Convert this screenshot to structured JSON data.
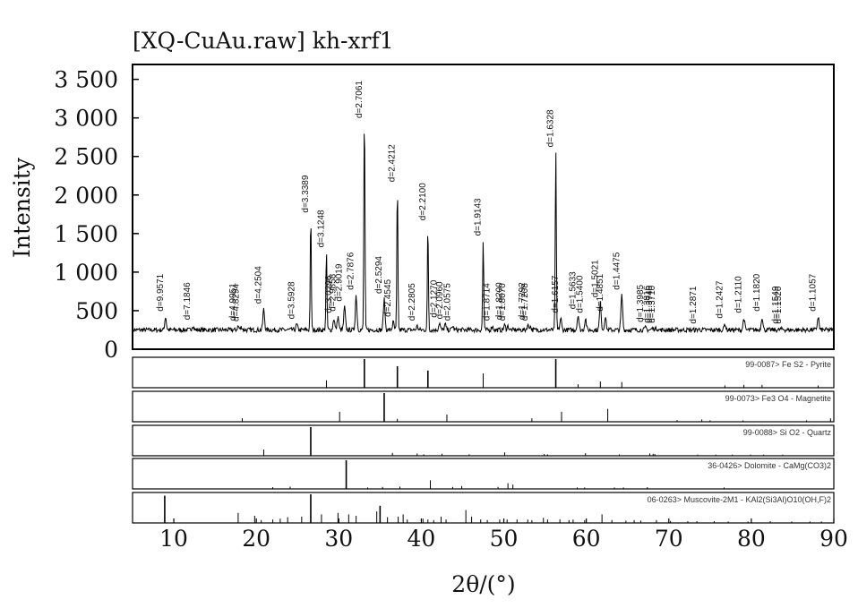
{
  "chart_data": {
    "type": "line",
    "title": "[XQ-CuAu.raw] kh-xrf1",
    "ylabel": "Intensity",
    "xlabel": "2θ/(°)",
    "xlim": [
      5,
      90
    ],
    "ylim": [
      0,
      3600
    ],
    "x_ticks": [
      10,
      20,
      30,
      40,
      50,
      60,
      70,
      80,
      90
    ],
    "y_ticks": [
      0,
      500,
      1000,
      1500,
      2000,
      2500,
      3000,
      3500
    ],
    "y_tick_labels": [
      "0",
      "500",
      "1 000",
      "1 500",
      "2 000",
      "2 500",
      "3 000",
      "3 500"
    ],
    "baseline": 250,
    "peaks": [
      {
        "x": 9.0,
        "y": 420,
        "label": "d=9.9571"
      },
      {
        "x": 12.3,
        "y": 310,
        "label": "d=7.1846"
      },
      {
        "x": 17.8,
        "y": 300,
        "label": "d=4.9951"
      },
      {
        "x": 18.2,
        "y": 290,
        "label": "d=4.8294"
      },
      {
        "x": 20.9,
        "y": 520,
        "label": "d=4.2504"
      },
      {
        "x": 24.9,
        "y": 320,
        "label": "d=3.5928"
      },
      {
        "x": 26.6,
        "y": 1700,
        "label": "d=3.3389"
      },
      {
        "x": 28.5,
        "y": 1250,
        "label": "d=3.1248"
      },
      {
        "x": 29.4,
        "y": 400,
        "label": "d=3.0296"
      },
      {
        "x": 29.9,
        "y": 420,
        "label": "d=2.9858"
      },
      {
        "x": 30.7,
        "y": 550,
        "label": "d=2.9019"
      },
      {
        "x": 32.1,
        "y": 700,
        "label": "d=2.7876"
      },
      {
        "x": 33.1,
        "y": 3100,
        "label": "d=2.7061"
      },
      {
        "x": 35.5,
        "y": 650,
        "label": "d=2.5294"
      },
      {
        "x": 36.6,
        "y": 350,
        "label": "d=2.4545"
      },
      {
        "x": 37.1,
        "y": 2100,
        "label": "d=2.4212"
      },
      {
        "x": 39.5,
        "y": 300,
        "label": "d=2.2805"
      },
      {
        "x": 40.8,
        "y": 1600,
        "label": "d=2.2100"
      },
      {
        "x": 42.2,
        "y": 340,
        "label": "d=2.1270"
      },
      {
        "x": 42.9,
        "y": 320,
        "label": "d=2.0960"
      },
      {
        "x": 43.8,
        "y": 300,
        "label": "d=2.0575"
      },
      {
        "x": 47.5,
        "y": 1400,
        "label": "d=1.9143"
      },
      {
        "x": 48.6,
        "y": 300,
        "label": "d=1.8714"
      },
      {
        "x": 50.1,
        "y": 310,
        "label": "d=1.8200"
      },
      {
        "x": 50.5,
        "y": 300,
        "label": "d=1.8070"
      },
      {
        "x": 52.9,
        "y": 310,
        "label": "d=1.7292"
      },
      {
        "x": 53.2,
        "y": 300,
        "label": "d=1.7208"
      },
      {
        "x": 56.3,
        "y": 2550,
        "label": "d=1.6328"
      },
      {
        "x": 56.9,
        "y": 400,
        "label": "d=1.6157"
      },
      {
        "x": 59.0,
        "y": 450,
        "label": "d=1.5633"
      },
      {
        "x": 59.9,
        "y": 400,
        "label": "d=1.5400"
      },
      {
        "x": 61.7,
        "y": 600,
        "label": "d=1.5021"
      },
      {
        "x": 62.3,
        "y": 420,
        "label": "d=1.4851"
      },
      {
        "x": 64.3,
        "y": 700,
        "label": "d=1.4475"
      },
      {
        "x": 67.2,
        "y": 280,
        "label": "d=1.3985"
      },
      {
        "x": 68.0,
        "y": 270,
        "label": "d=1.3816"
      },
      {
        "x": 68.3,
        "y": 270,
        "label": "d=1.3740"
      },
      {
        "x": 68.6,
        "y": 270,
        "label": "d=1.3710"
      },
      {
        "x": 73.6,
        "y": 260,
        "label": "d=1.2871"
      },
      {
        "x": 76.8,
        "y": 330,
        "label": "d=1.2427"
      },
      {
        "x": 79.1,
        "y": 400,
        "label": "d=1.2110"
      },
      {
        "x": 81.3,
        "y": 420,
        "label": "d=1.1820"
      },
      {
        "x": 83.6,
        "y": 260,
        "label": "d=1.1549"
      },
      {
        "x": 83.9,
        "y": 260,
        "label": "d=1.1520"
      },
      {
        "x": 88.1,
        "y": 420,
        "label": "d=1.1057"
      }
    ],
    "reference_panels": [
      {
        "label": "99-0087> Fe S2 - Pyrite",
        "lines": [
          [
            28.5,
            0.26
          ],
          [
            33.1,
            1.0
          ],
          [
            37.1,
            0.75
          ],
          [
            40.8,
            0.6
          ],
          [
            47.5,
            0.5
          ],
          [
            56.3,
            1.0
          ],
          [
            59.0,
            0.12
          ],
          [
            61.7,
            0.22
          ],
          [
            64.3,
            0.2
          ],
          [
            76.8,
            0.08
          ],
          [
            79.1,
            0.1
          ],
          [
            81.3,
            0.1
          ],
          [
            88.1,
            0.08
          ]
        ]
      },
      {
        "label": "99-0073> Fe3 O4 - Magnetite",
        "lines": [
          [
            18.3,
            0.12
          ],
          [
            30.1,
            0.35
          ],
          [
            35.5,
            1.0
          ],
          [
            37.1,
            0.1
          ],
          [
            43.1,
            0.25
          ],
          [
            53.4,
            0.12
          ],
          [
            57.0,
            0.35
          ],
          [
            62.6,
            0.45
          ],
          [
            71.0,
            0.06
          ],
          [
            74.0,
            0.08
          ],
          [
            75.0,
            0.05
          ],
          [
            79.0,
            0.05
          ],
          [
            86.7,
            0.05
          ],
          [
            89.6,
            0.12
          ]
        ]
      },
      {
        "label": "99-0088> Si O2 - Quartz",
        "lines": [
          [
            20.9,
            0.22
          ],
          [
            26.6,
            1.0
          ],
          [
            36.5,
            0.1
          ],
          [
            39.5,
            0.08
          ],
          [
            40.3,
            0.05
          ],
          [
            42.5,
            0.07
          ],
          [
            45.8,
            0.05
          ],
          [
            50.1,
            0.12
          ],
          [
            54.9,
            0.06
          ],
          [
            55.3,
            0.05
          ],
          [
            59.9,
            0.09
          ],
          [
            64.0,
            0.05
          ],
          [
            67.7,
            0.08
          ],
          [
            68.1,
            0.07
          ],
          [
            68.3,
            0.06
          ],
          [
            73.5,
            0.04
          ],
          [
            75.7,
            0.04
          ],
          [
            77.7,
            0.04
          ],
          [
            79.9,
            0.04
          ],
          [
            81.5,
            0.04
          ],
          [
            83.8,
            0.04
          ]
        ]
      },
      {
        "label": "36-0426> Dolomite - CaMg(CO3)2",
        "lines": [
          [
            22.0,
            0.06
          ],
          [
            24.1,
            0.08
          ],
          [
            30.9,
            1.0
          ],
          [
            33.5,
            0.05
          ],
          [
            35.3,
            0.07
          ],
          [
            37.4,
            0.08
          ],
          [
            41.1,
            0.3
          ],
          [
            43.8,
            0.07
          ],
          [
            44.9,
            0.1
          ],
          [
            49.3,
            0.07
          ],
          [
            50.5,
            0.2
          ],
          [
            51.1,
            0.15
          ],
          [
            58.9,
            0.05
          ],
          [
            59.8,
            0.05
          ],
          [
            63.4,
            0.05
          ],
          [
            64.5,
            0.05
          ],
          [
            67.4,
            0.06
          ],
          [
            76.7,
            0.05
          ]
        ]
      },
      {
        "label": "06-0263> Muscovite-2M1 - KAl2(Si3Al)O10(OH,F)2",
        "lines": [
          [
            8.9,
            0.95
          ],
          [
            17.8,
            0.35
          ],
          [
            19.8,
            0.25
          ],
          [
            20.6,
            0.1
          ],
          [
            22.0,
            0.12
          ],
          [
            22.9,
            0.15
          ],
          [
            23.8,
            0.2
          ],
          [
            25.5,
            0.22
          ],
          [
            26.6,
            1.0
          ],
          [
            27.9,
            0.3
          ],
          [
            29.9,
            0.35
          ],
          [
            31.2,
            0.3
          ],
          [
            32.1,
            0.25
          ],
          [
            34.6,
            0.4
          ],
          [
            35.0,
            0.6
          ],
          [
            35.9,
            0.2
          ],
          [
            37.2,
            0.22
          ],
          [
            37.8,
            0.3
          ],
          [
            38.3,
            0.12
          ],
          [
            40.2,
            0.15
          ],
          [
            40.8,
            0.12
          ],
          [
            41.5,
            0.1
          ],
          [
            42.4,
            0.22
          ],
          [
            43.0,
            0.12
          ],
          [
            45.4,
            0.45
          ],
          [
            46.1,
            0.22
          ],
          [
            47.2,
            0.12
          ],
          [
            48.0,
            0.1
          ],
          [
            49.5,
            0.12
          ],
          [
            50.4,
            0.12
          ],
          [
            51.6,
            0.12
          ],
          [
            52.9,
            0.12
          ],
          [
            53.4,
            0.1
          ],
          [
            54.8,
            0.18
          ],
          [
            55.3,
            0.12
          ],
          [
            56.8,
            0.12
          ],
          [
            57.9,
            0.1
          ],
          [
            58.4,
            0.12
          ],
          [
            59.8,
            0.1
          ],
          [
            61.9,
            0.3
          ],
          [
            63.1,
            0.1
          ],
          [
            64.8,
            0.08
          ],
          [
            65.8,
            0.1
          ],
          [
            66.6,
            0.08
          ],
          [
            68.5,
            0.1
          ],
          [
            70.2,
            0.07
          ],
          [
            72.3,
            0.06
          ],
          [
            73.4,
            0.06
          ],
          [
            75.5,
            0.06
          ],
          [
            77.2,
            0.05
          ],
          [
            79.6,
            0.05
          ],
          [
            82.3,
            0.06
          ],
          [
            84.9,
            0.05
          ],
          [
            87.1,
            0.05
          ],
          [
            88.5,
            0.05
          ]
        ]
      }
    ]
  }
}
